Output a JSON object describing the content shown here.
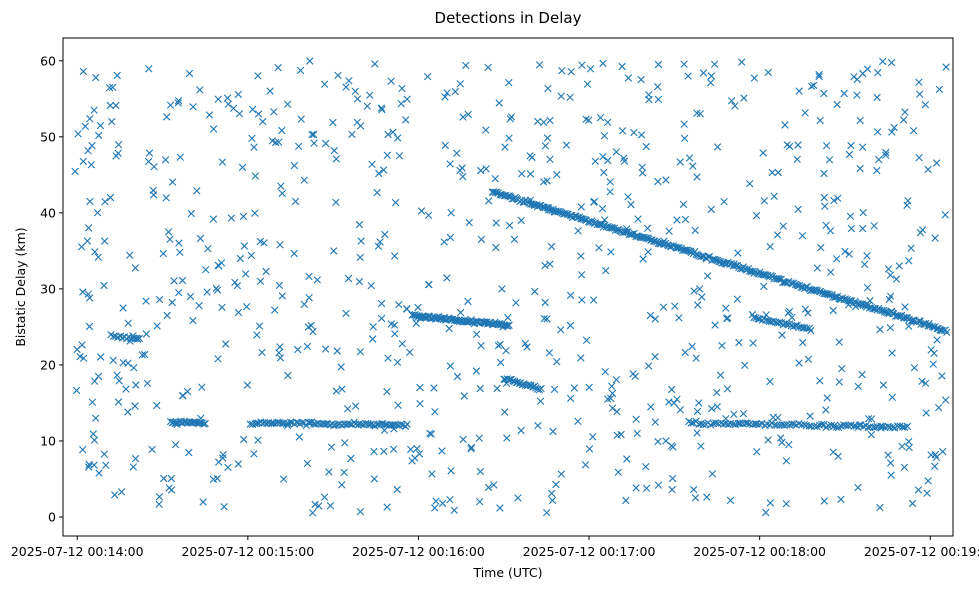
{
  "chart_data": {
    "type": "scatter",
    "title": "Detections in Delay",
    "xlabel": "Time (UTC)",
    "ylabel": "Bistatic Delay (km)",
    "marker": "x",
    "color": "#1f77b4",
    "grid": false,
    "legend": "none",
    "xlim": [
      "2025-07-12 00:13:55",
      "2025-07-12 00:19:08"
    ],
    "ylim": [
      -2.5,
      63
    ],
    "x_ticks": [
      {
        "value": "2025-07-12 00:14:00",
        "label": "2025-07-12 00:14:00"
      },
      {
        "value": "2025-07-12 00:15:00",
        "label": "2025-07-12 00:15:00"
      },
      {
        "value": "2025-07-12 00:16:00",
        "label": "2025-07-12 00:16:00"
      },
      {
        "value": "2025-07-12 00:17:00",
        "label": "2025-07-12 00:17:00"
      },
      {
        "value": "2025-07-12 00:18:00",
        "label": "2025-07-12 00:18:00"
      },
      {
        "value": "2025-07-12 00:19:00",
        "label": "2025-07-12 00:19:00"
      }
    ],
    "y_ticks": [
      0,
      10,
      20,
      30,
      40,
      50,
      60
    ],
    "tracks": [
      {
        "x_start": "2025-07-12 00:16:26",
        "x_end": "2025-07-12 00:19:06",
        "y_start": 42.8,
        "y_end": 24.5,
        "count": 300
      },
      {
        "x_start": "2025-07-12 00:15:58",
        "x_end": "2025-07-12 00:16:32",
        "y_start": 26.5,
        "y_end": 25.2,
        "count": 90
      },
      {
        "x_start": "2025-07-12 00:15:01",
        "x_end": "2025-07-12 00:15:56",
        "y_start": 12.4,
        "y_end": 12.1,
        "count": 80
      },
      {
        "x_start": "2025-07-12 00:14:33",
        "x_end": "2025-07-12 00:14:45",
        "y_start": 12.5,
        "y_end": 12.3,
        "count": 25
      },
      {
        "x_start": "2025-07-12 00:17:35",
        "x_end": "2025-07-12 00:18:52",
        "y_start": 12.4,
        "y_end": 11.8,
        "count": 90
      },
      {
        "x_start": "2025-07-12 00:17:58",
        "x_end": "2025-07-12 00:18:18",
        "y_start": 26.2,
        "y_end": 24.7,
        "count": 30
      },
      {
        "x_start": "2025-07-12 00:16:30",
        "x_end": "2025-07-12 00:16:43",
        "y_start": 18.2,
        "y_end": 16.8,
        "count": 25
      },
      {
        "x_start": "2025-07-12 00:14:12",
        "x_end": "2025-07-12 00:14:22",
        "y_start": 23.8,
        "y_end": 23.4,
        "count": 14
      }
    ],
    "clutter": {
      "count": 820,
      "x_range": [
        "2025-07-12 00:13:59",
        "2025-07-12 00:19:06"
      ],
      "y_range": [
        0.5,
        60
      ]
    }
  }
}
